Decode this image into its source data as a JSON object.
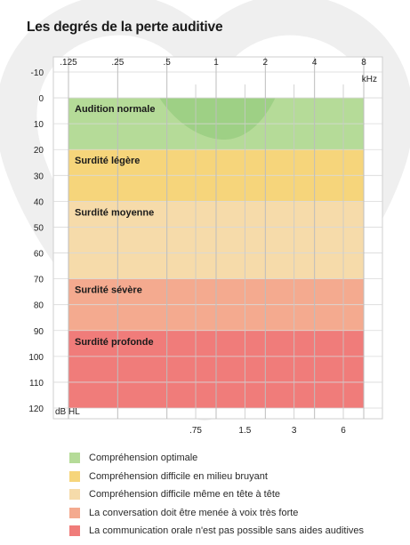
{
  "chart_data": {
    "type": "heatmap",
    "title": "Les degrés de la perte auditive",
    "x_top_ticks": [
      ".125",
      ".25",
      ".5",
      "1",
      "2",
      "4",
      "8"
    ],
    "x_bottom_ticks": [
      ".75",
      "1.5",
      "3",
      "6"
    ],
    "x_unit": "kHz",
    "y_ticks": [
      "-10",
      "0",
      "10",
      "20",
      "30",
      "40",
      "50",
      "60",
      "70",
      "80",
      "90",
      "100",
      "110",
      "120"
    ],
    "y_unit": "dB HL",
    "ylim": [
      -10,
      120
    ],
    "y_reversed": true,
    "x_scale": "log",
    "grid": true,
    "bands": [
      {
        "label": "Audition normale",
        "from": 0,
        "to": 20,
        "color": "#b5db98"
      },
      {
        "label": "Surdité légère",
        "from": 20,
        "to": 40,
        "color": "#f6d57b"
      },
      {
        "label": "Surdité moyenne",
        "from": 40,
        "to": 70,
        "color": "#f6dbaa"
      },
      {
        "label": "Surdité sévère",
        "from": 70,
        "to": 90,
        "color": "#f4aa8f"
      },
      {
        "label": "Surdité profonde",
        "from": 90,
        "to": 120,
        "color": "#f07c7a"
      }
    ],
    "legend": [
      {
        "label": "Compréhension optimale",
        "color": "#b5db98"
      },
      {
        "label": "Compréhension difficile en milieu bruyant",
        "color": "#f6d57b"
      },
      {
        "label": "Compréhension difficile même en tête à tête",
        "color": "#f6dbaa"
      },
      {
        "label": "La conversation doit être menée à voix très forte",
        "color": "#f4aa8f"
      },
      {
        "label": "La communication orale n'est pas possible sans aides auditives",
        "color": "#f07c7a"
      }
    ],
    "legend_position": "bottom"
  }
}
